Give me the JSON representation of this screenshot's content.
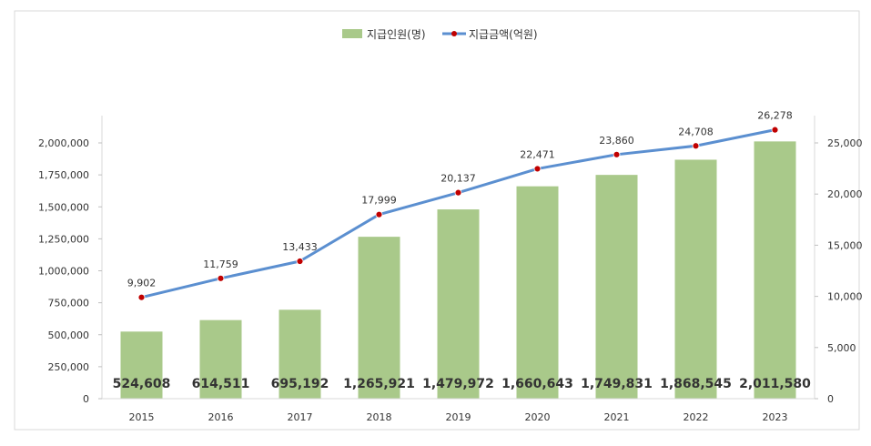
{
  "chart_data": {
    "type": "bar",
    "categories": [
      "2015",
      "2016",
      "2017",
      "2018",
      "2019",
      "2020",
      "2021",
      "2022",
      "2023"
    ],
    "series": [
      {
        "name": "지급인원(명)",
        "type": "bar",
        "axis": "left",
        "color": "#a9c98a",
        "values": [
          524608,
          614511,
          695192,
          1265921,
          1479972,
          1660643,
          1749831,
          1868545,
          2011580
        ],
        "labels": [
          "524,608",
          "614,511",
          "695,192",
          "1,265,921",
          "1,479,972",
          "1,660,643",
          "1,749,831",
          "1,868,545",
          "2,011,580"
        ]
      },
      {
        "name": "지급금액(억원)",
        "type": "line",
        "axis": "right",
        "color": "#5b8fd0",
        "marker_color": "#c00000",
        "values": [
          9902,
          11759,
          13433,
          17999,
          20137,
          22471,
          23860,
          24708,
          26278
        ],
        "labels": [
          "9,902",
          "11,759",
          "13,433",
          "17,999",
          "20,137",
          "22,471",
          "23,860",
          "24,708",
          "26,278"
        ]
      }
    ],
    "left_axis": {
      "ylim": [
        0,
        2000000
      ],
      "ticks": [
        0,
        250000,
        500000,
        750000,
        1000000,
        1250000,
        1500000,
        1750000,
        2000000
      ],
      "tick_labels": [
        "0",
        "250,000",
        "500,000",
        "750,000",
        "1,000,000",
        "1,250,000",
        "1,500,000",
        "1,750,000",
        "2,000,000"
      ]
    },
    "right_axis": {
      "ylim": [
        0,
        25000
      ],
      "ticks": [
        0,
        5000,
        10000,
        15000,
        20000,
        25000
      ],
      "tick_labels": [
        "0",
        "5,000",
        "10,000",
        "15,000",
        "20,000",
        "25,000"
      ]
    },
    "grid": false,
    "legend_position": "top-center"
  }
}
